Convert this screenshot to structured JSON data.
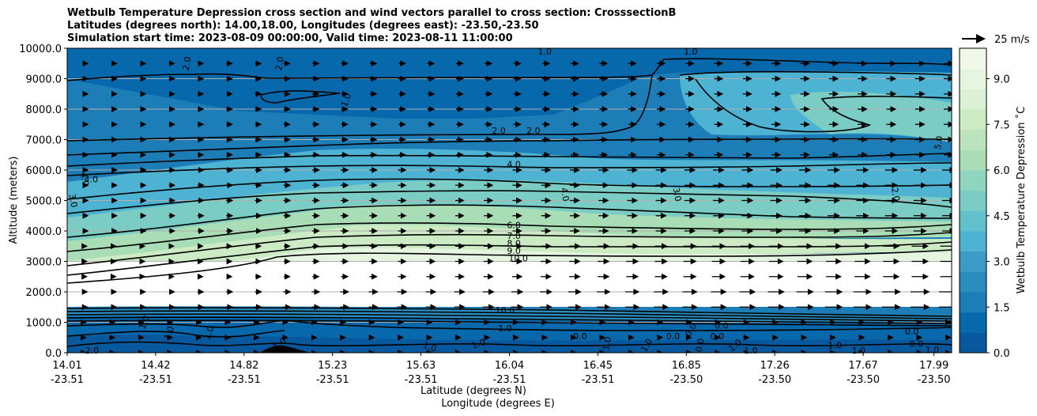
{
  "chart_data": {
    "type": "contour",
    "title_lines": [
      "Wetbulb Temperature Depression cross section and wind vectors parallel to cross section: CrosssectionB",
      "Latitudes (degrees north): 14.00,18.00, Longitudes (degrees east): -23.50,-23.50",
      "Simulation start time: 2023-08-09 00:00:00, Valid time: 2023-08-11 11:00:00"
    ],
    "ylabel": "Altitude (meters)",
    "xlabel_lat": "Latitude (degrees N)",
    "xlabel_lon": "Longitude (degrees E)",
    "ylim": [
      0,
      10000
    ],
    "y_ticks": [
      "0.0",
      "1000.0",
      "2000.0",
      "3000.0",
      "4000.0",
      "5000.0",
      "6000.0",
      "7000.0",
      "8000.0",
      "9000.0",
      "10000.0"
    ],
    "x_ticks": [
      {
        "lat": "14.01",
        "lon": "-23.51",
        "pos": 0.0
      },
      {
        "lat": "14.42",
        "lon": "-23.51",
        "pos": 0.1
      },
      {
        "lat": "14.82",
        "lon": "-23.51",
        "pos": 0.2
      },
      {
        "lat": "15.23",
        "lon": "-23.51",
        "pos": 0.3
      },
      {
        "lat": "15.63",
        "lon": "-23.51",
        "pos": 0.4
      },
      {
        "lat": "16.04",
        "lon": "-23.51",
        "pos": 0.5
      },
      {
        "lat": "16.45",
        "lon": "-23.51",
        "pos": 0.6
      },
      {
        "lat": "16.85",
        "lon": "-23.50",
        "pos": 0.7
      },
      {
        "lat": "17.26",
        "lon": "-23.50",
        "pos": 0.8
      },
      {
        "lat": "17.67",
        "lon": "-23.50",
        "pos": 0.9
      },
      {
        "lat": "17.99",
        "lon": "-23.50",
        "pos": 0.98
      }
    ],
    "colorbar": {
      "label": "Wetbulb Temperature Depression ˚C",
      "ticks": [
        "0.0",
        "1.5",
        "3.0",
        "4.5",
        "6.0",
        "7.5",
        "9.0"
      ],
      "range": [
        0,
        10
      ],
      "colors": [
        "#08589e",
        "#0868ac",
        "#1d7db7",
        "#2b8cbe",
        "#3b9cc8",
        "#4eb3d3",
        "#62bfcc",
        "#7bccc4",
        "#8fd4bf",
        "#a8ddb5",
        "#bbe4bc",
        "#ccebc5",
        "#dcf1d6",
        "#e5f5e0",
        "#f0f9e8"
      ]
    },
    "quiver_key": "25 m/s",
    "contour_labels": [
      {
        "text": "2.0",
        "x": 0.135,
        "alt": 9500,
        "rot": -80
      },
      {
        "text": "2.0",
        "x": 0.24,
        "alt": 9500,
        "rot": -80
      },
      {
        "text": "1.0",
        "x": 0.315,
        "alt": 8300,
        "rot": -70
      },
      {
        "text": "1.0",
        "x": 0.54,
        "alt": 9900,
        "rot": 0
      },
      {
        "text": "1.0",
        "x": 0.705,
        "alt": 9900,
        "rot": 0
      },
      {
        "text": "2.0",
        "x": 0.488,
        "alt": 7300,
        "rot": 0
      },
      {
        "text": "2.0",
        "x": 0.527,
        "alt": 7300,
        "rot": 0
      },
      {
        "text": "4.0",
        "x": 0.505,
        "alt": 6200,
        "rot": 0
      },
      {
        "text": "4.0",
        "x": 0.027,
        "alt": 5700,
        "rot": 0
      },
      {
        "text": "4.0",
        "x": 0.02,
        "alt": 5700,
        "rot": 80
      },
      {
        "text": "3.0",
        "x": 0.007,
        "alt": 5000,
        "rot": 80
      },
      {
        "text": "4.0",
        "x": 0.563,
        "alt": 5200,
        "rot": 80
      },
      {
        "text": "3.0",
        "x": 0.69,
        "alt": 5200,
        "rot": 80
      },
      {
        "text": "2.0",
        "x": 0.937,
        "alt": 5200,
        "rot": 80
      },
      {
        "text": "5.0",
        "x": 0.985,
        "alt": 6900,
        "rot": -80
      },
      {
        "text": "6.0",
        "x": 0.505,
        "alt": 4200,
        "rot": 0
      },
      {
        "text": "7.0",
        "x": 0.505,
        "alt": 3850,
        "rot": 0
      },
      {
        "text": "8.0",
        "x": 0.505,
        "alt": 3600,
        "rot": 0
      },
      {
        "text": "9.0",
        "x": 0.505,
        "alt": 3350,
        "rot": 0
      },
      {
        "text": "10.0",
        "x": 0.51,
        "alt": 3100,
        "rot": 0
      },
      {
        "text": "10.0",
        "x": 0.495,
        "alt": 1400,
        "rot": 0
      },
      {
        "text": "1.0",
        "x": 0.495,
        "alt": 800,
        "rot": 0
      },
      {
        "text": "1.0",
        "x": 0.115,
        "alt": 650,
        "rot": -70
      },
      {
        "text": "1.0",
        "x": 0.16,
        "alt": 650,
        "rot": -70
      },
      {
        "text": "2.0",
        "x": 0.028,
        "alt": 80,
        "rot": 0
      },
      {
        "text": "1.0",
        "x": 0.087,
        "alt": 1000,
        "rot": -70
      },
      {
        "text": "1.0",
        "x": 0.24,
        "alt": 300,
        "rot": -40
      },
      {
        "text": "1.0",
        "x": 0.41,
        "alt": 200,
        "rot": 20
      },
      {
        "text": "1.0",
        "x": 0.465,
        "alt": 300,
        "rot": -20
      },
      {
        "text": "0.0",
        "x": 0.58,
        "alt": 550,
        "rot": 0
      },
      {
        "text": "1.0",
        "x": 0.61,
        "alt": 300,
        "rot": -80
      },
      {
        "text": "1.0",
        "x": 0.655,
        "alt": 250,
        "rot": -60
      },
      {
        "text": "0.0",
        "x": 0.685,
        "alt": 550,
        "rot": 0
      },
      {
        "text": "0.0",
        "x": 0.705,
        "alt": 750,
        "rot": -60
      },
      {
        "text": "0.0",
        "x": 0.715,
        "alt": 250,
        "rot": -80
      },
      {
        "text": "0.0",
        "x": 0.735,
        "alt": 550,
        "rot": 0
      },
      {
        "text": "0.0",
        "x": 0.74,
        "alt": 900,
        "rot": 0
      },
      {
        "text": "1.0",
        "x": 0.755,
        "alt": 250,
        "rot": -40
      },
      {
        "text": "1.0",
        "x": 0.773,
        "alt": 80,
        "rot": 0
      },
      {
        "text": "1.0",
        "x": 0.868,
        "alt": 250,
        "rot": 0
      },
      {
        "text": "1.0",
        "x": 0.895,
        "alt": 80,
        "rot": 0
      },
      {
        "text": "0.0",
        "x": 0.955,
        "alt": 700,
        "rot": 0
      },
      {
        "text": "0.0",
        "x": 0.96,
        "alt": 300,
        "rot": 0
      },
      {
        "text": "1.0",
        "x": 0.978,
        "alt": 100,
        "rot": 0
      }
    ]
  }
}
